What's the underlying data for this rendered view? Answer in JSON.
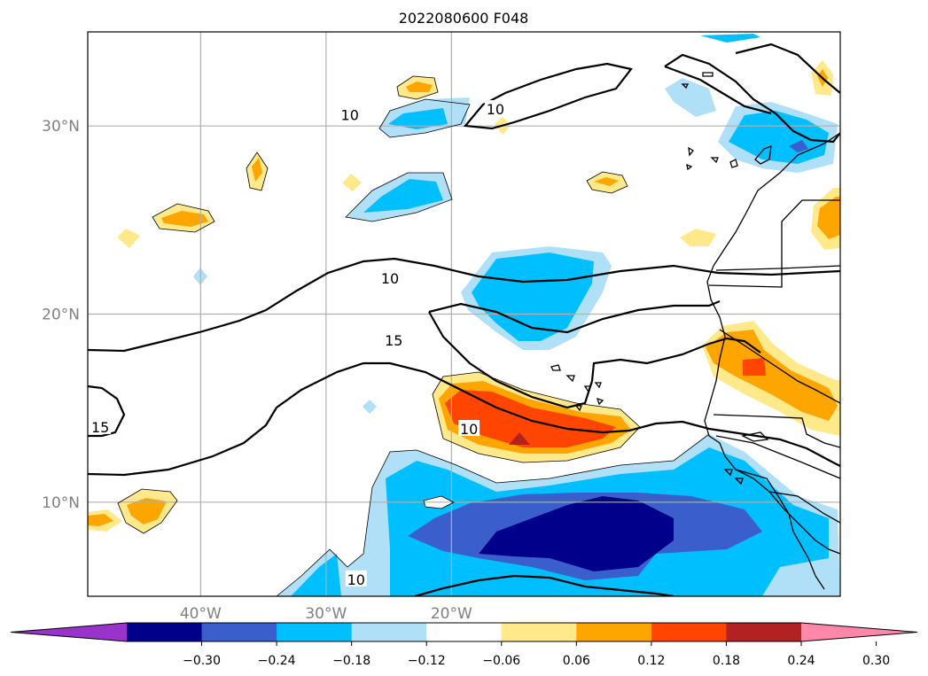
{
  "chart_data": {
    "type": "contour-map",
    "title": "2022080600 F048",
    "lon_range": [
      -49,
      11
    ],
    "lat_range": [
      5,
      35
    ],
    "x_ticks": [
      {
        "lon": -40,
        "label": "40°W"
      },
      {
        "lon": -30,
        "label": "30°W"
      },
      {
        "lon": -20,
        "label": "20°W"
      }
    ],
    "y_ticks": [
      {
        "lat": 10,
        "label": "10°N"
      },
      {
        "lat": 20,
        "label": "20°N"
      },
      {
        "lat": 30,
        "label": "30°N"
      }
    ],
    "grid": true,
    "colorbar": {
      "orientation": "horizontal",
      "extend": "both",
      "colors": [
        "#9933cc",
        "#00008b",
        "#3a5fcd",
        "#00bfff",
        "#b0e0f8",
        "#ffffff",
        "#ffe98a",
        "#ffa500",
        "#ff4500",
        "#b22222",
        "#ff88aa"
      ],
      "ticks": [
        {
          "value": -0.3,
          "label": "−0.30"
        },
        {
          "value": -0.24,
          "label": "−0.24"
        },
        {
          "value": -0.18,
          "label": "−0.18"
        },
        {
          "value": -0.12,
          "label": "−0.12"
        },
        {
          "value": -0.06,
          "label": "−0.06"
        },
        {
          "value": 0.06,
          "label": "0.06"
        },
        {
          "value": 0.12,
          "label": "0.12"
        },
        {
          "value": 0.18,
          "label": "0.18"
        },
        {
          "value": 0.24,
          "label": "0.24"
        },
        {
          "value": 0.3,
          "label": "0.30"
        }
      ]
    },
    "contour_labels": [
      {
        "text": "10",
        "lon": -28.1,
        "lat": 30.6
      },
      {
        "text": "10",
        "lon": -16.5,
        "lat": 30.9
      },
      {
        "text": "10",
        "lon": -24.9,
        "lat": 21.9
      },
      {
        "text": "15",
        "lon": -24.6,
        "lat": 18.6
      },
      {
        "text": "10",
        "lon": -18.6,
        "lat": 13.9
      },
      {
        "text": "15",
        "lon": -48.0,
        "lat": 14.0
      },
      {
        "text": "10",
        "lon": -27.6,
        "lat": 5.9
      }
    ]
  }
}
